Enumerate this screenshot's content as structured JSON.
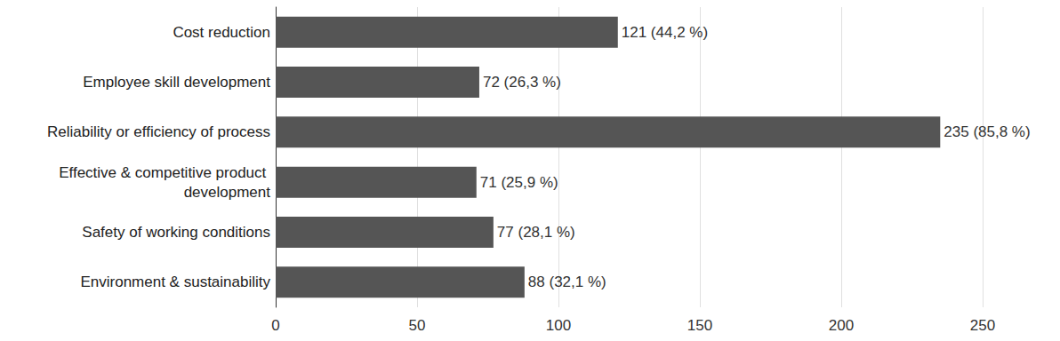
{
  "chart_data": {
    "type": "bar",
    "orientation": "horizontal",
    "categories": [
      "Cost reduction",
      "Employee skill development",
      "Reliability or efficiency of process",
      "Effective & competitive product development",
      "Safety of working conditions",
      "Environment & sustainability"
    ],
    "values": [
      121,
      72,
      235,
      71,
      77,
      88
    ],
    "value_labels": [
      "121 (44,2 %)",
      "72 (26,3 %)",
      "235 (85,8 %)",
      "71 (25,9 %)",
      "77 (28,1 %)",
      "88 (32,1 %)"
    ],
    "color": "#555555",
    "xlim": [
      0,
      250
    ],
    "xticks": [
      0,
      50,
      100,
      150,
      200,
      250
    ],
    "grid": true,
    "data_labels": true
  }
}
